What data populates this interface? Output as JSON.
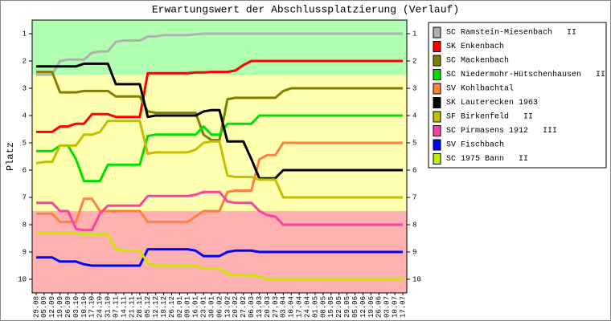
{
  "chart_data": {
    "type": "line",
    "title": "Erwartungswert der Abschlussplatzierung (Verlauf)",
    "y_label": "Platz",
    "y_inverted": true,
    "ylim": [
      0.5,
      10.5
    ],
    "yticks": [
      1,
      2,
      3,
      4,
      5,
      6,
      7,
      8,
      9,
      10
    ],
    "bands": [
      {
        "from": 0.5,
        "to": 2.5,
        "color": "#b0ffb0"
      },
      {
        "from": 2.5,
        "to": 7.5,
        "color": "#ffffb0"
      },
      {
        "from": 7.5,
        "to": 10.5,
        "color": "#ffb0b0"
      }
    ],
    "categories": [
      "29.08",
      "05.09",
      "12.09",
      "19.09",
      "26.09",
      "03.10",
      "10.10",
      "17.10",
      "24.10",
      "31.10",
      "07.11",
      "14.11",
      "21.11",
      "28.11",
      "05.12",
      "12.12",
      "19.12",
      "26.12",
      "02.01",
      "09.01",
      "16.01",
      "23.01",
      "30.01",
      "06.02",
      "13.02",
      "20.02",
      "27.02",
      "06.03",
      "13.03",
      "20.03",
      "27.03",
      "03.04",
      "10.04",
      "17.04",
      "24.04",
      "01.05",
      "08.05",
      "15.05",
      "22.05",
      "29.05",
      "05.06",
      "12.06",
      "19.06",
      "26.06",
      "03.07",
      "10.07",
      "17.07"
    ],
    "series": [
      {
        "name": "SC Ramstein-Miesenbach   II",
        "color": "#b0b0b0",
        "values": [
          2.5,
          2.5,
          2.5,
          2.0,
          1.95,
          1.95,
          1.95,
          1.7,
          1.65,
          1.65,
          1.3,
          1.25,
          1.25,
          1.25,
          1.1,
          1.1,
          1.05,
          1.05,
          1.05,
          1.05,
          1.02,
          1,
          1,
          1,
          1,
          1,
          1,
          1,
          1,
          1,
          1,
          1,
          1,
          1,
          1,
          1,
          1,
          1,
          1,
          1,
          1,
          1,
          1,
          1,
          1,
          1,
          1
        ]
      },
      {
        "name": "SK Enkenbach",
        "color": "#ff0000",
        "values": [
          4.6,
          4.6,
          4.6,
          4.4,
          4.4,
          4.3,
          4.3,
          3.95,
          3.95,
          3.95,
          4.05,
          4.05,
          4.05,
          4.05,
          2.45,
          2.45,
          2.45,
          2.45,
          2.45,
          2.45,
          2.42,
          2.42,
          2.4,
          2.4,
          2.4,
          2.35,
          2.15,
          2,
          2,
          2,
          2,
          2,
          2,
          2,
          2,
          2,
          2,
          2,
          2,
          2,
          2,
          2,
          2,
          2,
          2,
          2,
          2
        ]
      },
      {
        "name": "SC Mackenbach",
        "color": "#808000",
        "values": [
          2.4,
          2.4,
          2.4,
          3.15,
          3.15,
          3.15,
          3.1,
          3.1,
          3.1,
          3.1,
          3.3,
          3.3,
          3.3,
          3.3,
          3.85,
          3.9,
          3.9,
          3.9,
          3.9,
          3.9,
          3.9,
          4.7,
          4.9,
          4.9,
          3.4,
          3.35,
          3.35,
          3.35,
          3.35,
          3.35,
          3.35,
          3.1,
          3,
          3,
          3,
          3,
          3,
          3,
          3,
          3,
          3,
          3,
          3,
          3,
          3,
          3,
          3
        ]
      },
      {
        "name": "SC Niedermohr-Hütschenhausen   II",
        "color": "#00e000",
        "values": [
          5.3,
          5.3,
          5.3,
          5.1,
          5.1,
          5.6,
          6.4,
          6.4,
          6.4,
          5.8,
          5.8,
          5.8,
          5.8,
          5.8,
          4.75,
          4.7,
          4.7,
          4.7,
          4.7,
          4.7,
          4.7,
          4.4,
          4.7,
          4.7,
          4.3,
          4.3,
          4.3,
          4.3,
          4,
          4,
          4,
          4,
          4,
          4,
          4,
          4,
          4,
          4,
          4,
          4,
          4,
          4,
          4,
          4,
          4,
          4,
          4
        ]
      },
      {
        "name": "SV Kohlbachtal",
        "color": "#ff8040",
        "values": [
          7.6,
          7.6,
          7.6,
          7.9,
          7.9,
          7.9,
          7.05,
          7.05,
          7.5,
          7.5,
          7.5,
          7.5,
          7.5,
          7.5,
          7.9,
          7.9,
          7.9,
          7.9,
          7.9,
          7.9,
          7.7,
          7.5,
          7.5,
          7.5,
          6.8,
          6.75,
          6.75,
          6.75,
          5.6,
          5.45,
          5.45,
          5,
          5,
          5,
          5,
          5,
          5,
          5,
          5,
          5,
          5,
          5,
          5,
          5,
          5,
          5,
          5
        ]
      },
      {
        "name": "SK Lauterecken 1963",
        "color": "#000000",
        "values": [
          2.2,
          2.2,
          2.2,
          2.2,
          2.2,
          2.2,
          2.1,
          2.1,
          2.1,
          2.1,
          2.85,
          2.85,
          2.85,
          2.85,
          4.05,
          4,
          4,
          4,
          4,
          4,
          4,
          3.85,
          3.8,
          3.8,
          4.95,
          4.95,
          4.95,
          5.6,
          6.3,
          6.3,
          6.3,
          6,
          6,
          6,
          6,
          6,
          6,
          6,
          6,
          6,
          6,
          6,
          6,
          6,
          6,
          6,
          6
        ]
      },
      {
        "name": "SF Birkenfeld   II",
        "color": "#c0c000",
        "values": [
          5.75,
          5.7,
          5.7,
          5.1,
          5.1,
          5.1,
          4.7,
          4.7,
          4.6,
          4.2,
          4.2,
          4.2,
          4.2,
          4.2,
          5.4,
          5.35,
          5.35,
          5.35,
          5.35,
          5.35,
          5.25,
          5,
          4.95,
          4.95,
          6.2,
          6.25,
          6.25,
          6.25,
          6.35,
          6.35,
          6.35,
          7,
          7,
          7,
          7,
          7,
          7,
          7,
          7,
          7,
          7,
          7,
          7,
          7,
          7,
          7,
          7
        ]
      },
      {
        "name": "SC Pirmasens 1912   III",
        "color": "#ff40a0",
        "values": [
          7.2,
          7.2,
          7.2,
          7.5,
          7.5,
          8.15,
          8.2,
          8.2,
          7.6,
          7.3,
          7.3,
          7.3,
          7.3,
          7.3,
          6.95,
          6.95,
          6.95,
          6.95,
          6.95,
          6.95,
          6.9,
          6.8,
          6.8,
          6.8,
          7.15,
          7.2,
          7.2,
          7.2,
          7.5,
          7.65,
          7.7,
          8,
          8,
          8,
          8,
          8,
          8,
          8,
          8,
          8,
          8,
          8,
          8,
          8,
          8,
          8,
          8
        ]
      },
      {
        "name": "SV Fischbach",
        "color": "#0000ff",
        "values": [
          9.2,
          9.2,
          9.2,
          9.35,
          9.35,
          9.35,
          9.45,
          9.5,
          9.5,
          9.5,
          9.5,
          9.5,
          9.5,
          9.5,
          8.9,
          8.9,
          8.9,
          8.9,
          8.9,
          8.9,
          8.95,
          9.15,
          9.15,
          9.15,
          9,
          8.95,
          8.95,
          8.95,
          9,
          9,
          9,
          9,
          9,
          9,
          9,
          9,
          9,
          9,
          9,
          9,
          9,
          9,
          9,
          9,
          9,
          9,
          9
        ]
      },
      {
        "name": "SC 1975 Bann   II",
        "color": "#c8e800",
        "values": [
          8.3,
          8.3,
          8.3,
          8.3,
          8.3,
          8.3,
          8.35,
          8.35,
          8.35,
          8.35,
          8.9,
          8.95,
          8.95,
          8.95,
          9.4,
          9.5,
          9.5,
          9.5,
          9.5,
          9.5,
          9.5,
          9.6,
          9.6,
          9.6,
          9.8,
          9.85,
          9.85,
          9.85,
          9.9,
          10,
          10,
          10,
          10,
          10,
          10,
          10,
          10,
          10,
          10,
          10,
          10,
          10,
          10,
          10,
          10,
          10,
          10
        ]
      }
    ]
  }
}
